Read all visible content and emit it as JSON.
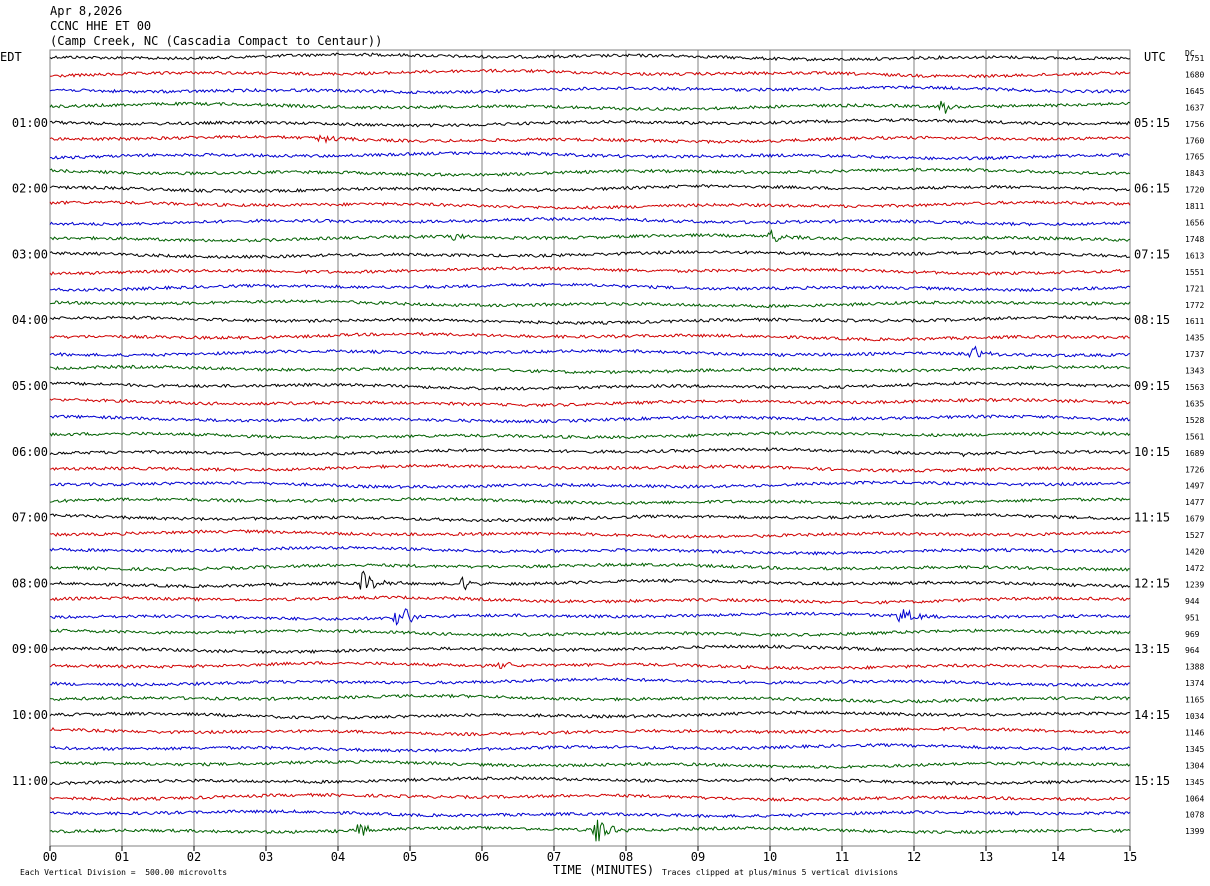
{
  "header": {
    "date": "Apr 8,2026",
    "channel": "CCNC HHE ET 00",
    "station": "(Camp Creek, NC (Cascadia Compact to Centaur))"
  },
  "timezones": {
    "left": "EDT",
    "right": "UTC",
    "dc_label": "DC"
  },
  "footer": {
    "scale": "Each Vertical Division =  500.00 microvolts",
    "clip": "Traces clipped at plus/minus 5 vertical divisions"
  },
  "colors": {
    "trace_cycle": [
      "#000000",
      "#d00000",
      "#0000d0",
      "#006000"
    ],
    "grid": "#808080"
  },
  "chart_data": {
    "type": "line",
    "title": "CCNC HHE ET 00",
    "xlabel": "TIME (MINUTES)",
    "xlim": [
      0,
      15
    ],
    "x_ticks": [
      "00",
      "01",
      "02",
      "03",
      "04",
      "05",
      "06",
      "07",
      "08",
      "09",
      "10",
      "11",
      "12",
      "13",
      "14",
      "15"
    ],
    "rows_per_hour": 4,
    "left_hour_labels": [
      {
        "row": 4,
        "text": "01:00"
      },
      {
        "row": 8,
        "text": "02:00"
      },
      {
        "row": 12,
        "text": "03:00"
      },
      {
        "row": 16,
        "text": "04:00"
      },
      {
        "row": 20,
        "text": "05:00"
      },
      {
        "row": 24,
        "text": "06:00"
      },
      {
        "row": 28,
        "text": "07:00"
      },
      {
        "row": 32,
        "text": "08:00"
      },
      {
        "row": 36,
        "text": "09:00"
      },
      {
        "row": 40,
        "text": "10:00"
      },
      {
        "row": 44,
        "text": "11:00"
      }
    ],
    "right_hour_labels": [
      {
        "row": 4,
        "text": "05:15"
      },
      {
        "row": 8,
        "text": "06:15"
      },
      {
        "row": 12,
        "text": "07:15"
      },
      {
        "row": 16,
        "text": "08:15"
      },
      {
        "row": 20,
        "text": "09:15"
      },
      {
        "row": 24,
        "text": "10:15"
      },
      {
        "row": 28,
        "text": "11:15"
      },
      {
        "row": 32,
        "text": "12:15"
      },
      {
        "row": 36,
        "text": "13:15"
      },
      {
        "row": 40,
        "text": "14:15"
      },
      {
        "row": 44,
        "text": "15:15"
      }
    ],
    "dc_offsets": [
      "1751",
      "1680",
      "1645",
      "1637",
      "1756",
      "1760",
      "1765",
      "1843",
      "1720",
      "1811",
      "1656",
      "1748",
      "1613",
      "1551",
      "1721",
      "1772",
      "1611",
      "1435",
      "1737",
      "1343",
      "1563",
      "1635",
      "1528",
      "1561",
      "1689",
      "1726",
      "1497",
      "1477",
      "1679",
      "1527",
      "1420",
      "1472",
      "1239",
      "944",
      "951",
      "969",
      "964",
      "1388",
      "1374",
      "1165",
      "1034",
      "1146",
      "1345",
      "1304",
      "1345",
      "1064",
      "1078",
      "1399"
    ],
    "events": [
      {
        "row": 3,
        "t": 12.4,
        "amp": 0.6
      },
      {
        "row": 5,
        "t": 3.8,
        "amp": 0.5
      },
      {
        "row": 11,
        "t": 5.6,
        "amp": 0.4
      },
      {
        "row": 11,
        "t": 10.05,
        "amp": 0.5
      },
      {
        "row": 18,
        "t": 12.85,
        "amp": 0.5
      },
      {
        "row": 24,
        "t": 12.75,
        "amp": 0.3
      },
      {
        "row": 32,
        "t": 4.35,
        "amp": 1.0
      },
      {
        "row": 32,
        "t": 5.75,
        "amp": 0.6
      },
      {
        "row": 34,
        "t": 4.85,
        "amp": 1.4
      },
      {
        "row": 34,
        "t": 11.85,
        "amp": 0.8
      },
      {
        "row": 37,
        "t": 6.3,
        "amp": 0.4
      },
      {
        "row": 47,
        "t": 4.3,
        "amp": 0.6
      },
      {
        "row": 47,
        "t": 7.6,
        "amp": 1.2
      }
    ]
  }
}
